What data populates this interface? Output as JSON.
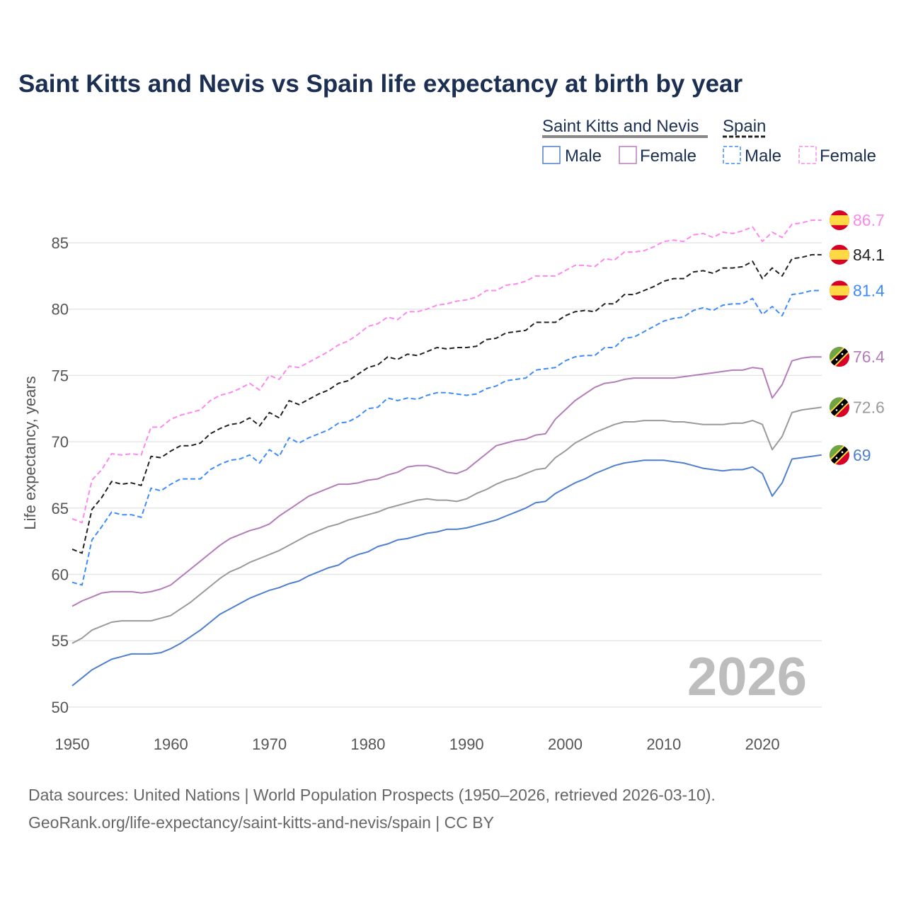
{
  "title": "Saint Kitts and Nevis vs Spain life expectancy at birth by year",
  "legend": {
    "country1": "Saint Kitts and Nevis",
    "country2": "Spain",
    "items": [
      "Male",
      "Female",
      "Male",
      "Female"
    ]
  },
  "watermark_year": "2026",
  "footer": {
    "line1": "Data sources: United Nations | World Population Prospects (1950–2026, retrieved 2026-03-10).",
    "line2": "GeoRank.org/life-expectancy/saint-kitts-and-nevis/spain | CC BY"
  },
  "chart_data": {
    "type": "line",
    "title": "Saint Kitts and Nevis vs Spain life expectancy at birth by year",
    "xlabel": "",
    "ylabel": "Life expectancy, years",
    "xlim": [
      1950,
      2026
    ],
    "ylim": [
      50,
      87
    ],
    "x_ticks": [
      1950,
      1960,
      1970,
      1980,
      1990,
      2000,
      2010,
      2020
    ],
    "y_ticks": [
      50,
      55,
      60,
      65,
      70,
      75,
      80,
      85
    ],
    "grid": true,
    "legend_position": "top-right",
    "x_start": 1950,
    "series": [
      {
        "name": "Spain Female",
        "country": "spain",
        "color": "#ff88ee",
        "dashed": true,
        "end_label": "86.7",
        "values": [
          64.2,
          63.9,
          67.1,
          67.9,
          69.1,
          69.0,
          69.1,
          69.0,
          71.1,
          71.1,
          71.7,
          72.0,
          72.2,
          72.4,
          73.1,
          73.5,
          73.7,
          74.0,
          74.4,
          73.9,
          75.0,
          74.7,
          75.7,
          75.6,
          76.0,
          76.4,
          76.8,
          77.3,
          77.6,
          78.1,
          78.7,
          78.9,
          79.4,
          79.2,
          79.8,
          79.8,
          80.0,
          80.3,
          80.4,
          80.6,
          80.7,
          80.9,
          81.4,
          81.4,
          81.8,
          81.9,
          82.1,
          82.5,
          82.5,
          82.5,
          82.9,
          83.3,
          83.3,
          83.2,
          83.8,
          83.7,
          84.3,
          84.3,
          84.4,
          84.7,
          85.1,
          85.2,
          85.1,
          85.6,
          85.7,
          85.4,
          85.8,
          85.7,
          85.9,
          86.2,
          85.1,
          85.8,
          85.4,
          86.4,
          86.5,
          86.7,
          86.7
        ]
      },
      {
        "name": "Spain",
        "country": "spain",
        "color": "#222222",
        "dashed": true,
        "end_label": "84.1",
        "values": [
          61.9,
          61.6,
          64.9,
          65.8,
          67.0,
          66.8,
          66.9,
          66.7,
          68.9,
          68.8,
          69.3,
          69.7,
          69.7,
          69.9,
          70.6,
          71.0,
          71.3,
          71.4,
          71.8,
          71.2,
          72.2,
          71.8,
          73.1,
          72.8,
          73.2,
          73.6,
          73.9,
          74.4,
          74.6,
          75.1,
          75.6,
          75.8,
          76.4,
          76.2,
          76.6,
          76.5,
          76.8,
          77.1,
          77.0,
          77.1,
          77.1,
          77.2,
          77.7,
          77.8,
          78.2,
          78.3,
          78.4,
          79.0,
          79.0,
          79.0,
          79.5,
          79.8,
          79.9,
          79.8,
          80.4,
          80.4,
          81.1,
          81.1,
          81.4,
          81.7,
          82.1,
          82.3,
          82.3,
          82.8,
          82.9,
          82.7,
          83.1,
          83.1,
          83.2,
          83.6,
          82.3,
          83.1,
          82.5,
          83.8,
          83.9,
          84.1,
          84.1
        ]
      },
      {
        "name": "Spain Male",
        "country": "spain",
        "color": "#3d8bfd",
        "dashed": true,
        "end_label": "81.4",
        "values": [
          59.4,
          59.2,
          62.6,
          63.6,
          64.7,
          64.5,
          64.5,
          64.3,
          66.5,
          66.3,
          66.8,
          67.2,
          67.2,
          67.2,
          67.9,
          68.3,
          68.6,
          68.7,
          69.0,
          68.4,
          69.4,
          68.9,
          70.3,
          69.9,
          70.3,
          70.6,
          70.9,
          71.4,
          71.5,
          71.9,
          72.5,
          72.6,
          73.3,
          73.1,
          73.3,
          73.2,
          73.5,
          73.7,
          73.7,
          73.6,
          73.5,
          73.6,
          74.0,
          74.2,
          74.6,
          74.7,
          74.8,
          75.4,
          75.5,
          75.6,
          76.1,
          76.4,
          76.5,
          76.5,
          77.1,
          77.1,
          77.8,
          77.9,
          78.3,
          78.7,
          79.1,
          79.3,
          79.4,
          79.9,
          80.1,
          79.9,
          80.3,
          80.4,
          80.4,
          80.8,
          79.6,
          80.2,
          79.5,
          81.1,
          81.2,
          81.4,
          81.4
        ]
      },
      {
        "name": "Saint Kitts and Nevis Female",
        "country": "skn",
        "color": "#b57cba",
        "dashed": false,
        "end_label": "76.4",
        "values": [
          57.6,
          58.0,
          58.3,
          58.6,
          58.7,
          58.7,
          58.7,
          58.6,
          58.7,
          58.9,
          59.2,
          59.8,
          60.4,
          61.0,
          61.6,
          62.2,
          62.7,
          63.0,
          63.3,
          63.5,
          63.8,
          64.4,
          64.9,
          65.4,
          65.9,
          66.2,
          66.5,
          66.8,
          66.8,
          66.9,
          67.1,
          67.2,
          67.5,
          67.7,
          68.1,
          68.2,
          68.2,
          68.0,
          67.7,
          67.6,
          67.9,
          68.5,
          69.1,
          69.7,
          69.9,
          70.1,
          70.2,
          70.5,
          70.6,
          71.7,
          72.4,
          73.1,
          73.6,
          74.1,
          74.4,
          74.5,
          74.7,
          74.8,
          74.8,
          74.8,
          74.8,
          74.8,
          74.9,
          75.0,
          75.1,
          75.2,
          75.3,
          75.4,
          75.4,
          75.6,
          75.5,
          73.3,
          74.3,
          76.1,
          76.3,
          76.4,
          76.4
        ]
      },
      {
        "name": "Saint Kitts and Nevis",
        "country": "skn",
        "color": "#9a9a9a",
        "dashed": false,
        "end_label": "72.6",
        "values": [
          54.8,
          55.2,
          55.8,
          56.1,
          56.4,
          56.5,
          56.5,
          56.5,
          56.5,
          56.7,
          56.9,
          57.4,
          57.9,
          58.5,
          59.1,
          59.7,
          60.2,
          60.5,
          60.9,
          61.2,
          61.5,
          61.8,
          62.2,
          62.6,
          63.0,
          63.3,
          63.6,
          63.8,
          64.1,
          64.3,
          64.5,
          64.7,
          65.0,
          65.2,
          65.4,
          65.6,
          65.7,
          65.6,
          65.6,
          65.5,
          65.7,
          66.1,
          66.4,
          66.8,
          67.1,
          67.3,
          67.6,
          67.9,
          68.0,
          68.8,
          69.3,
          69.9,
          70.3,
          70.7,
          71.0,
          71.3,
          71.5,
          71.5,
          71.6,
          71.6,
          71.6,
          71.5,
          71.5,
          71.4,
          71.3,
          71.3,
          71.3,
          71.4,
          71.4,
          71.6,
          71.3,
          69.4,
          70.4,
          72.2,
          72.4,
          72.5,
          72.6
        ]
      },
      {
        "name": "Saint Kitts and Nevis Male",
        "country": "skn",
        "color": "#4f7fcf",
        "dashed": false,
        "end_label": "69",
        "values": [
          51.6,
          52.2,
          52.8,
          53.2,
          53.6,
          53.8,
          54.0,
          54.0,
          54.0,
          54.1,
          54.4,
          54.8,
          55.3,
          55.8,
          56.4,
          57.0,
          57.4,
          57.8,
          58.2,
          58.5,
          58.8,
          59.0,
          59.3,
          59.5,
          59.9,
          60.2,
          60.5,
          60.7,
          61.2,
          61.5,
          61.7,
          62.1,
          62.3,
          62.6,
          62.7,
          62.9,
          63.1,
          63.2,
          63.4,
          63.4,
          63.5,
          63.7,
          63.9,
          64.1,
          64.4,
          64.7,
          65.0,
          65.4,
          65.5,
          66.1,
          66.5,
          66.9,
          67.2,
          67.6,
          67.9,
          68.2,
          68.4,
          68.5,
          68.6,
          68.6,
          68.6,
          68.5,
          68.4,
          68.2,
          68.0,
          67.9,
          67.8,
          67.9,
          67.9,
          68.1,
          67.6,
          65.9,
          66.9,
          68.7,
          68.8,
          68.9,
          69.0
        ]
      }
    ]
  }
}
